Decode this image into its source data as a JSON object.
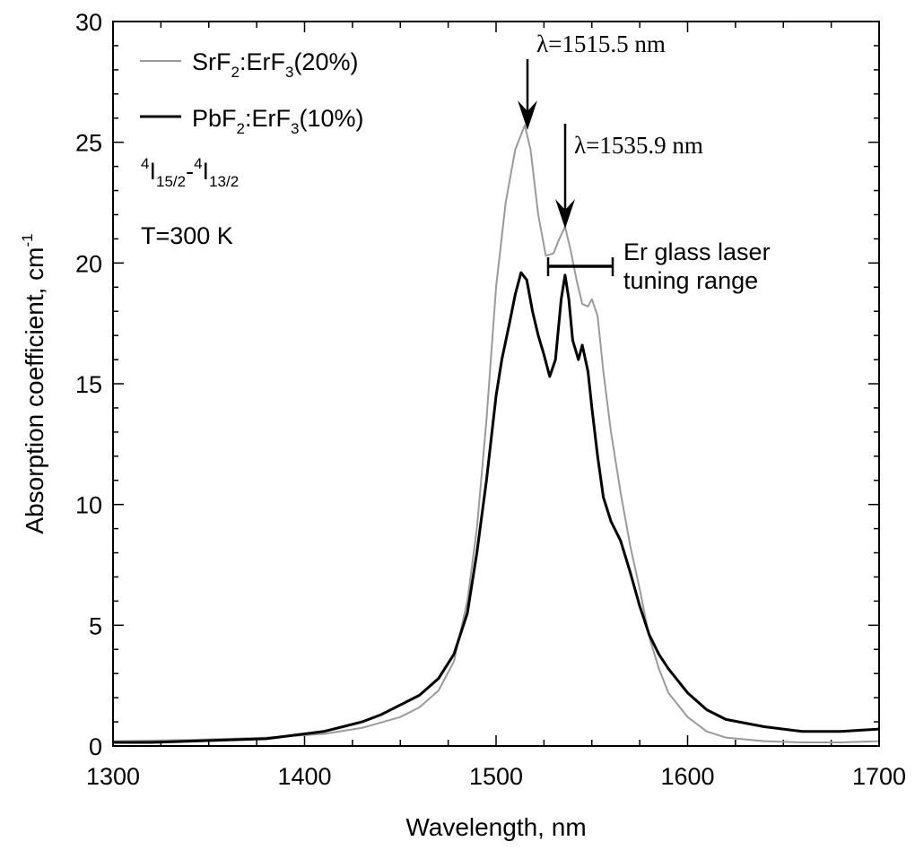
{
  "chart_data": {
    "type": "line",
    "title": "",
    "xlabel": "Wavelength, nm",
    "ylabel": "Absorption coefficient, cm",
    "ylabel_superscript": "-1",
    "xlim": [
      1300,
      1700
    ],
    "ylim": [
      0,
      30
    ],
    "xticks": [
      1300,
      1400,
      1500,
      1600,
      1700
    ],
    "yticks": [
      0,
      5,
      10,
      15,
      20,
      25,
      30
    ],
    "grid": false,
    "legend_position": "top-left",
    "series": [
      {
        "name": "SrF2:ErF3(20%)",
        "name_parts": {
          "a": "SrF",
          "a_sub": "2",
          "b": ":ErF",
          "b_sub": "3",
          "c": "(20%)"
        },
        "color": "#9a9a9a",
        "x": [
          1300,
          1340,
          1380,
          1410,
          1430,
          1450,
          1460,
          1470,
          1478,
          1485,
          1490,
          1495,
          1500,
          1505,
          1510,
          1515,
          1518,
          1522,
          1526,
          1530,
          1533,
          1536,
          1539,
          1542,
          1545,
          1548,
          1550,
          1553,
          1556,
          1560,
          1565,
          1570,
          1575,
          1580,
          1585,
          1590,
          1600,
          1610,
          1620,
          1640,
          1660,
          1680,
          1700
        ],
        "y": [
          0.2,
          0.25,
          0.35,
          0.5,
          0.75,
          1.2,
          1.6,
          2.3,
          3.5,
          6.0,
          9.0,
          13.5,
          19.0,
          22.5,
          24.7,
          25.7,
          24.7,
          22.0,
          20.3,
          20.4,
          21.0,
          21.5,
          20.5,
          19.3,
          18.3,
          18.2,
          18.5,
          17.8,
          15.5,
          13.0,
          10.5,
          8.3,
          6.5,
          4.5,
          3.2,
          2.2,
          1.2,
          0.6,
          0.35,
          0.2,
          0.15,
          0.15,
          0.2
        ]
      },
      {
        "name": "PbF2:ErF3(10%)",
        "name_parts": {
          "a": "PbF",
          "a_sub": "2",
          "b": ":ErF",
          "b_sub": "3",
          "c": "(10%)"
        },
        "color": "#000000",
        "x": [
          1300,
          1320,
          1340,
          1360,
          1380,
          1400,
          1410,
          1420,
          1430,
          1440,
          1450,
          1460,
          1470,
          1478,
          1485,
          1490,
          1495,
          1500,
          1503,
          1507,
          1510,
          1513,
          1516,
          1519,
          1522,
          1525,
          1528,
          1531,
          1534,
          1536,
          1538,
          1540,
          1543,
          1545,
          1548,
          1550,
          1553,
          1556,
          1560,
          1565,
          1570,
          1575,
          1580,
          1585,
          1590,
          1600,
          1610,
          1620,
          1640,
          1660,
          1680,
          1700
        ],
        "y": [
          0.15,
          0.15,
          0.2,
          0.25,
          0.3,
          0.5,
          0.6,
          0.8,
          1.0,
          1.3,
          1.7,
          2.1,
          2.8,
          3.8,
          5.5,
          8.0,
          11.0,
          14.5,
          16.0,
          17.5,
          18.7,
          19.6,
          19.3,
          18.0,
          17.0,
          16.2,
          15.3,
          16.0,
          18.5,
          19.5,
          18.5,
          16.8,
          16.0,
          16.6,
          15.5,
          14.0,
          12.0,
          10.3,
          9.3,
          8.5,
          7.2,
          5.8,
          4.6,
          3.8,
          3.2,
          2.2,
          1.5,
          1.1,
          0.8,
          0.6,
          0.6,
          0.7
        ]
      }
    ],
    "annotations": {
      "transition": {
        "p1": "4",
        "p2": "I",
        "p3": "15/2",
        "p4": "-",
        "p5": "4",
        "p6": "I",
        "p7": "13/2"
      },
      "temperature": "T=300 K",
      "peak1": {
        "label": "λ=1515.5 nm",
        "x": 1515.5,
        "y": 25.7
      },
      "peak2": {
        "label": "λ=1535.9 nm",
        "x": 1535.9,
        "y": 21.5
      },
      "tuning": {
        "line1": "Er glass laser",
        "line2": "tuning range",
        "x_start": 1527,
        "x_end": 1560,
        "y": 20
      }
    }
  }
}
